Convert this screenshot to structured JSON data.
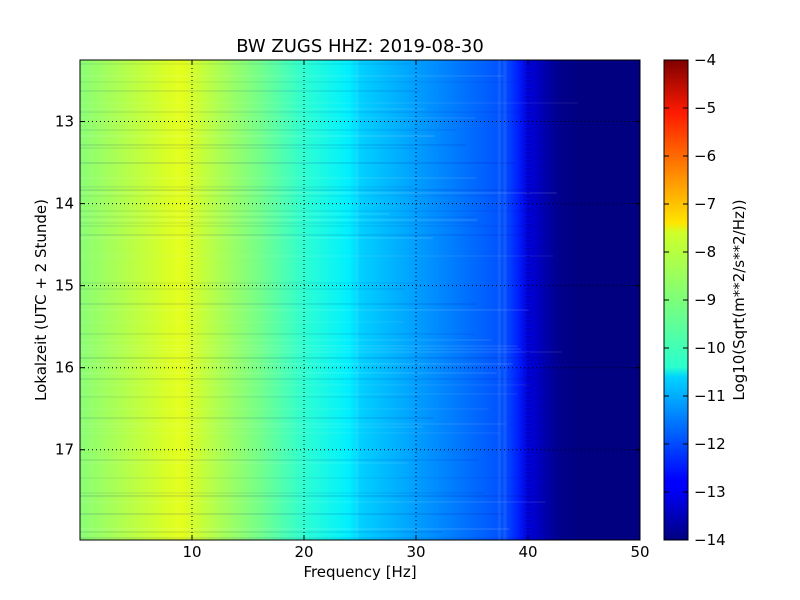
{
  "chart_data": {
    "type": "heatmap",
    "title": "BW ZUGS HHZ: 2019-08-30",
    "xlabel": "Frequency [Hz]",
    "ylabel": "Lokalzeit (UTC + 2 Stunde)",
    "xlim": [
      0,
      50
    ],
    "ylim": [
      12.25,
      18.1
    ],
    "y_inverted": true,
    "x_ticks": [
      10,
      20,
      30,
      40,
      50
    ],
    "x_tick_labels": [
      "10",
      "20",
      "30",
      "40",
      "50"
    ],
    "y_ticks": [
      13,
      14,
      15,
      16,
      17
    ],
    "y_tick_labels": [
      "13",
      "14",
      "15",
      "16",
      "17"
    ],
    "grid": true,
    "colormap": "jet",
    "colorbar": {
      "label": "Log10(Sqrt(m**2/s**2/Hz))",
      "range": [
        -14,
        -4
      ],
      "ticks": [
        -4,
        -5,
        -6,
        -7,
        -8,
        -9,
        -10,
        -11,
        -12,
        -13,
        -14
      ],
      "tick_labels": [
        "−4",
        "−5",
        "−6",
        "−7",
        "−8",
        "−9",
        "−10",
        "−11",
        "−12",
        "−13",
        "−14"
      ]
    },
    "spectrum_profile": {
      "frequency_hz": [
        0,
        2,
        5,
        8,
        9,
        12,
        16,
        20,
        24,
        25,
        28,
        32,
        36,
        38,
        39,
        40,
        41,
        42,
        43,
        45,
        50
      ],
      "value": [
        -8.9,
        -8.7,
        -8.4,
        -8.1,
        -8.0,
        -8.5,
        -9.1,
        -9.8,
        -10.4,
        -10.7,
        -11.0,
        -11.4,
        -11.8,
        -12.0,
        -12.4,
        -13.1,
        -13.4,
        -13.7,
        -13.9,
        -14.0,
        -14.0
      ]
    }
  }
}
